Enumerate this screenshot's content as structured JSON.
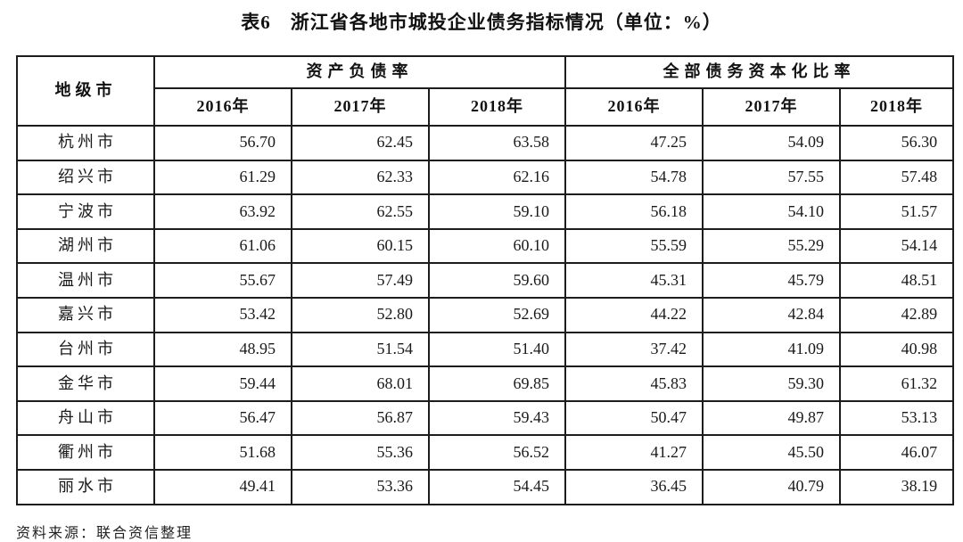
{
  "title": "表6　浙江省各地市城投企业债务指标情况（单位：%）",
  "table": {
    "corner_header": "地级市",
    "groups": [
      {
        "label": "资产负债率",
        "years": [
          "2016年",
          "2017年",
          "2018年"
        ]
      },
      {
        "label": "全部债务资本化比率",
        "years": [
          "2016年",
          "2017年",
          "2018年"
        ]
      }
    ],
    "rows": [
      {
        "city": "杭州市",
        "values": [
          "56.70",
          "62.45",
          "63.58",
          "47.25",
          "54.09",
          "56.30"
        ]
      },
      {
        "city": "绍兴市",
        "values": [
          "61.29",
          "62.33",
          "62.16",
          "54.78",
          "57.55",
          "57.48"
        ]
      },
      {
        "city": "宁波市",
        "values": [
          "63.92",
          "62.55",
          "59.10",
          "56.18",
          "54.10",
          "51.57"
        ]
      },
      {
        "city": "湖州市",
        "values": [
          "61.06",
          "60.15",
          "60.10",
          "55.59",
          "55.29",
          "54.14"
        ]
      },
      {
        "city": "温州市",
        "values": [
          "55.67",
          "57.49",
          "59.60",
          "45.31",
          "45.79",
          "48.51"
        ]
      },
      {
        "city": "嘉兴市",
        "values": [
          "53.42",
          "52.80",
          "52.69",
          "44.22",
          "42.84",
          "42.89"
        ]
      },
      {
        "city": "台州市",
        "values": [
          "48.95",
          "51.54",
          "51.40",
          "37.42",
          "41.09",
          "40.98"
        ]
      },
      {
        "city": "金华市",
        "values": [
          "59.44",
          "68.01",
          "69.85",
          "45.83",
          "59.30",
          "61.32"
        ]
      },
      {
        "city": "舟山市",
        "values": [
          "56.47",
          "56.87",
          "59.43",
          "50.47",
          "49.87",
          "53.13"
        ]
      },
      {
        "city": "衢州市",
        "values": [
          "51.68",
          "55.36",
          "56.52",
          "41.27",
          "45.50",
          "46.07"
        ]
      },
      {
        "city": "丽水市",
        "values": [
          "49.41",
          "53.36",
          "54.45",
          "36.45",
          "40.79",
          "38.19"
        ]
      }
    ]
  },
  "footer": {
    "source": "资料来源：联合资信整理"
  }
}
